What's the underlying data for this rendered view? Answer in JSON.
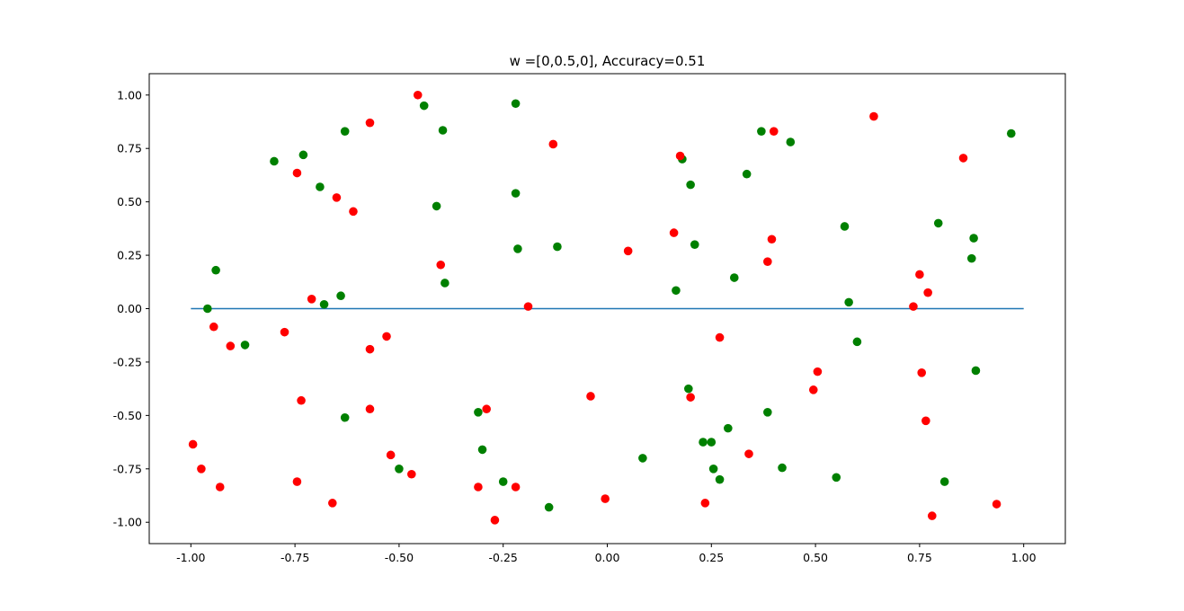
{
  "chart_data": {
    "type": "scatter",
    "title": "w =[0,0.5,0], Accuracy=0.51",
    "xlabel": "",
    "ylabel": "",
    "xlim": [
      -1.1,
      1.1
    ],
    "ylim": [
      -1.1,
      1.1
    ],
    "x_ticks": [
      "-1.00",
      "-0.75",
      "-0.50",
      "-0.25",
      "0.00",
      "0.25",
      "0.50",
      "0.75",
      "1.00"
    ],
    "y_ticks": [
      "-1.00",
      "-0.75",
      "-0.50",
      "-0.25",
      "0.00",
      "0.25",
      "0.50",
      "0.75",
      "1.00"
    ],
    "grid": false,
    "line": {
      "x": [
        -1.0,
        1.0
      ],
      "y": [
        0.0,
        0.0
      ],
      "color": "#1f77b4"
    },
    "series": [
      {
        "color": "#008000",
        "points": [
          [
            -0.94,
            0.18
          ],
          [
            -0.96,
            0.0
          ],
          [
            -0.87,
            -0.17
          ],
          [
            -0.8,
            0.69
          ],
          [
            -0.73,
            0.72
          ],
          [
            -0.69,
            0.57
          ],
          [
            -0.68,
            0.02
          ],
          [
            -0.64,
            0.06
          ],
          [
            -0.63,
            0.83
          ],
          [
            -0.63,
            -0.51
          ],
          [
            -0.5,
            -0.75
          ],
          [
            -0.44,
            0.95
          ],
          [
            -0.41,
            0.48
          ],
          [
            -0.395,
            0.835
          ],
          [
            -0.39,
            0.12
          ],
          [
            -0.31,
            -0.485
          ],
          [
            -0.3,
            -0.66
          ],
          [
            -0.25,
            -0.81
          ],
          [
            -0.22,
            0.96
          ],
          [
            -0.22,
            0.54
          ],
          [
            -0.215,
            0.28
          ],
          [
            -0.14,
            -0.93
          ],
          [
            -0.12,
            0.29
          ],
          [
            0.085,
            -0.7
          ],
          [
            0.165,
            0.085
          ],
          [
            0.18,
            0.7
          ],
          [
            0.195,
            -0.375
          ],
          [
            0.2,
            0.58
          ],
          [
            0.21,
            0.3
          ],
          [
            0.23,
            -0.625
          ],
          [
            0.25,
            -0.625
          ],
          [
            0.255,
            -0.75
          ],
          [
            0.27,
            -0.8
          ],
          [
            0.29,
            -0.56
          ],
          [
            0.305,
            0.145
          ],
          [
            0.335,
            0.63
          ],
          [
            0.37,
            0.83
          ],
          [
            0.385,
            -0.485
          ],
          [
            0.42,
            -0.745
          ],
          [
            0.44,
            0.78
          ],
          [
            0.55,
            -0.79
          ],
          [
            0.57,
            0.385
          ],
          [
            0.58,
            0.03
          ],
          [
            0.6,
            -0.155
          ],
          [
            0.795,
            0.4
          ],
          [
            0.81,
            -0.81
          ],
          [
            0.875,
            0.235
          ],
          [
            0.88,
            0.33
          ],
          [
            0.885,
            -0.29
          ],
          [
            0.97,
            0.82
          ]
        ]
      },
      {
        "color": "#ff0000",
        "points": [
          [
            -0.995,
            -0.635
          ],
          [
            -0.975,
            -0.75
          ],
          [
            -0.945,
            -0.085
          ],
          [
            -0.93,
            -0.835
          ],
          [
            -0.905,
            -0.175
          ],
          [
            -0.775,
            -0.11
          ],
          [
            -0.745,
            0.635
          ],
          [
            -0.745,
            -0.81
          ],
          [
            -0.735,
            -0.43
          ],
          [
            -0.71,
            0.045
          ],
          [
            -0.66,
            -0.91
          ],
          [
            -0.65,
            0.52
          ],
          [
            -0.61,
            0.455
          ],
          [
            -0.57,
            0.87
          ],
          [
            -0.57,
            -0.19
          ],
          [
            -0.57,
            -0.47
          ],
          [
            -0.53,
            -0.13
          ],
          [
            -0.52,
            -0.685
          ],
          [
            -0.47,
            -0.775
          ],
          [
            -0.455,
            1.0
          ],
          [
            -0.4,
            0.205
          ],
          [
            -0.31,
            -0.835
          ],
          [
            -0.29,
            -0.47
          ],
          [
            -0.27,
            -0.99
          ],
          [
            -0.22,
            -0.835
          ],
          [
            -0.19,
            0.01
          ],
          [
            -0.13,
            0.77
          ],
          [
            -0.04,
            -0.41
          ],
          [
            -0.005,
            -0.89
          ],
          [
            0.05,
            0.27
          ],
          [
            0.16,
            0.355
          ],
          [
            0.175,
            0.715
          ],
          [
            0.2,
            -0.415
          ],
          [
            0.235,
            -0.91
          ],
          [
            0.27,
            -0.135
          ],
          [
            0.34,
            -0.68
          ],
          [
            0.385,
            0.22
          ],
          [
            0.395,
            0.325
          ],
          [
            0.4,
            0.83
          ],
          [
            0.495,
            -0.38
          ],
          [
            0.505,
            -0.295
          ],
          [
            0.64,
            0.9
          ],
          [
            0.735,
            0.01
          ],
          [
            0.75,
            0.16
          ],
          [
            0.755,
            -0.3
          ],
          [
            0.765,
            -0.525
          ],
          [
            0.77,
            0.075
          ],
          [
            0.78,
            -0.97
          ],
          [
            0.855,
            0.705
          ],
          [
            0.935,
            -0.915
          ]
        ]
      }
    ]
  }
}
